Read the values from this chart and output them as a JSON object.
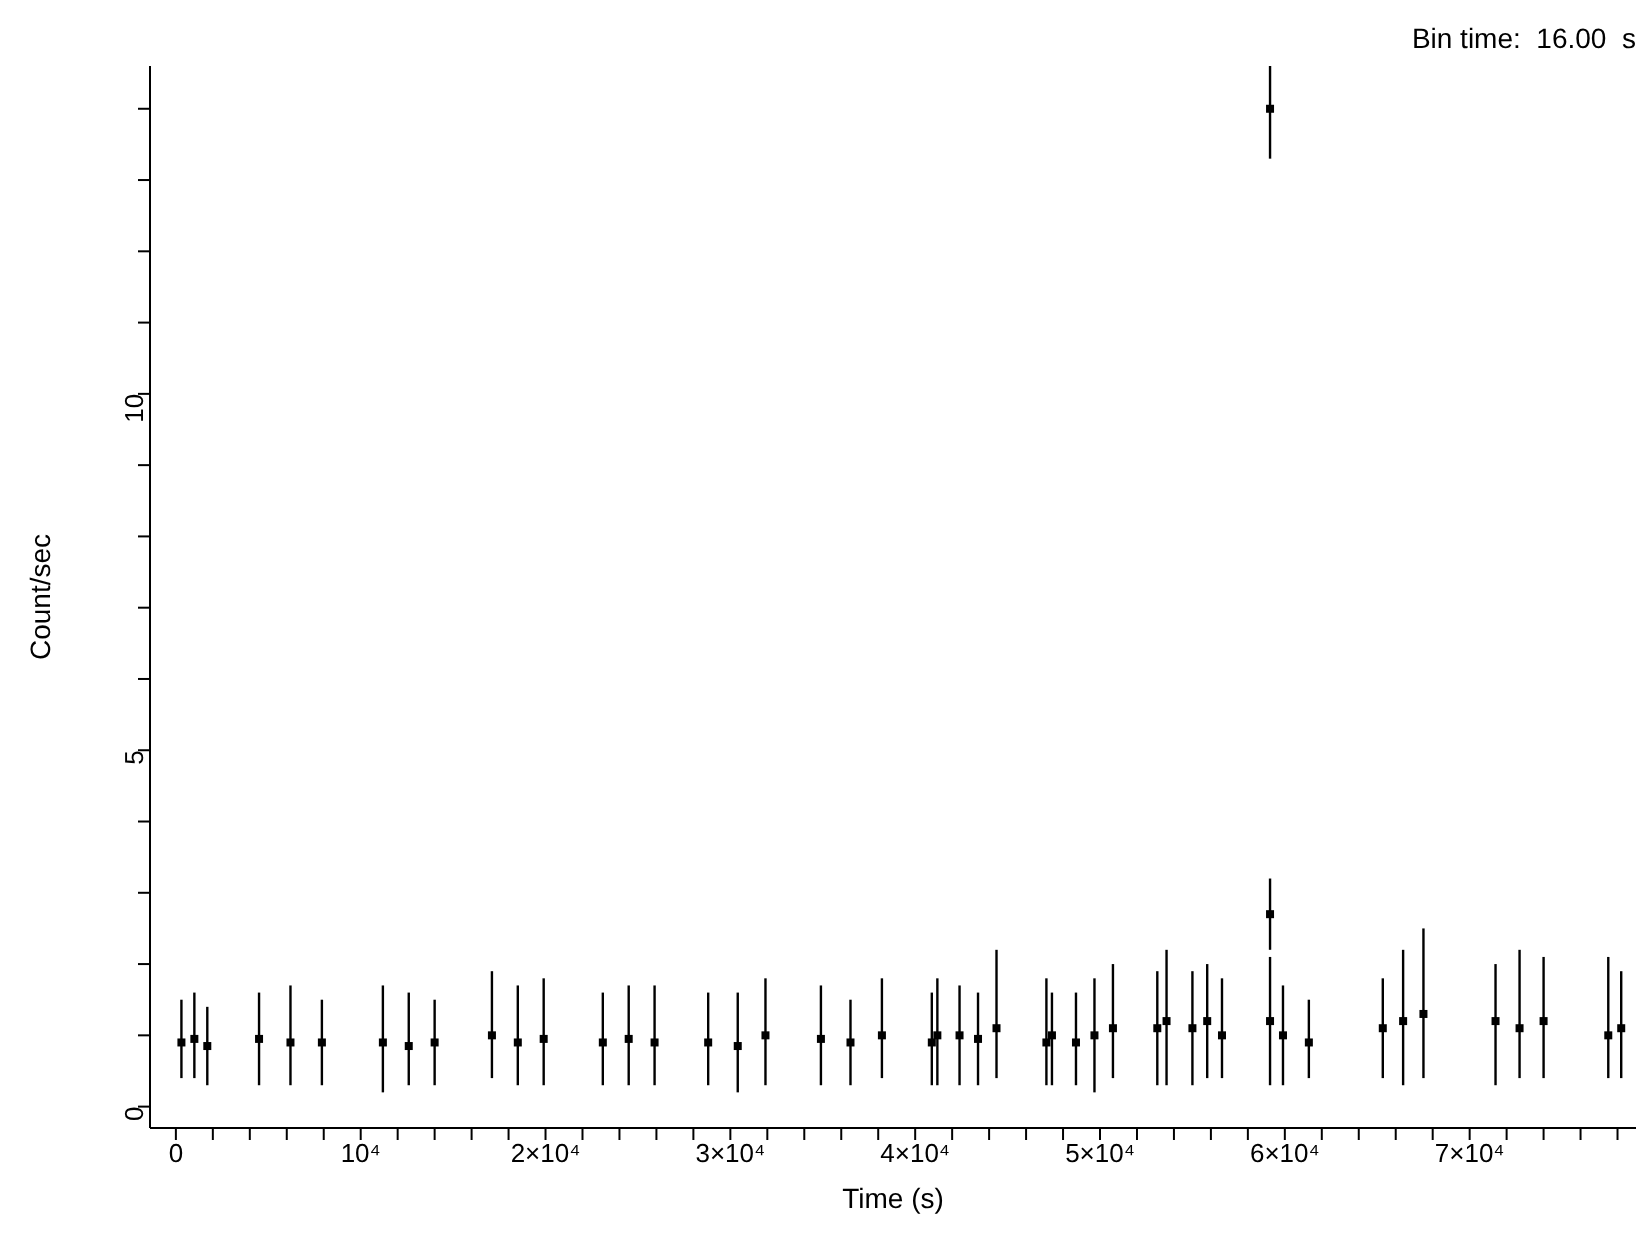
{
  "chart_data": {
    "type": "scatter",
    "title": "Bin time:  16.00  s",
    "xlabel": "Time (s)",
    "ylabel": "Count/sec",
    "marker": "square",
    "grid": false,
    "legend": false,
    "xlim": [
      -1400,
      79000
    ],
    "ylim": [
      -0.3,
      14.6
    ],
    "xticks": [
      {
        "value": 0,
        "label": "0"
      },
      {
        "value": 2000,
        "label": null
      },
      {
        "value": 4000,
        "label": null
      },
      {
        "value": 6000,
        "label": null
      },
      {
        "value": 8000,
        "label": null
      },
      {
        "value": 10000,
        "label": "10⁴"
      },
      {
        "value": 12000,
        "label": null
      },
      {
        "value": 14000,
        "label": null
      },
      {
        "value": 16000,
        "label": null
      },
      {
        "value": 18000,
        "label": null
      },
      {
        "value": 20000,
        "label": "2×10⁴"
      },
      {
        "value": 22000,
        "label": null
      },
      {
        "value": 24000,
        "label": null
      },
      {
        "value": 26000,
        "label": null
      },
      {
        "value": 28000,
        "label": null
      },
      {
        "value": 30000,
        "label": "3×10⁴"
      },
      {
        "value": 32000,
        "label": null
      },
      {
        "value": 34000,
        "label": null
      },
      {
        "value": 36000,
        "label": null
      },
      {
        "value": 38000,
        "label": null
      },
      {
        "value": 40000,
        "label": "4×10⁴"
      },
      {
        "value": 42000,
        "label": null
      },
      {
        "value": 44000,
        "label": null
      },
      {
        "value": 46000,
        "label": null
      },
      {
        "value": 48000,
        "label": null
      },
      {
        "value": 50000,
        "label": "5×10⁴"
      },
      {
        "value": 52000,
        "label": null
      },
      {
        "value": 54000,
        "label": null
      },
      {
        "value": 56000,
        "label": null
      },
      {
        "value": 58000,
        "label": null
      },
      {
        "value": 60000,
        "label": "6×10⁴"
      },
      {
        "value": 62000,
        "label": null
      },
      {
        "value": 64000,
        "label": null
      },
      {
        "value": 66000,
        "label": null
      },
      {
        "value": 68000,
        "label": null
      },
      {
        "value": 70000,
        "label": "7×10⁴"
      },
      {
        "value": 72000,
        "label": null
      },
      {
        "value": 74000,
        "label": null
      },
      {
        "value": 76000,
        "label": null
      },
      {
        "value": 78000,
        "label": null
      }
    ],
    "yticks": [
      0,
      {
        "value": 1,
        "label": null
      },
      {
        "value": 2,
        "label": null
      },
      {
        "value": 3,
        "label": null
      },
      {
        "value": 4,
        "label": null
      },
      5,
      {
        "value": 6,
        "label": null
      },
      {
        "value": 7,
        "label": null
      },
      {
        "value": 8,
        "label": null
      },
      {
        "value": 9,
        "label": null
      },
      10,
      {
        "value": 11,
        "label": null
      },
      {
        "value": 12,
        "label": null
      },
      {
        "value": 13,
        "label": null
      },
      {
        "value": 14,
        "label": null
      }
    ],
    "series": [
      {
        "color": "#000000",
        "x": [
          300,
          1000,
          1700,
          4500,
          6200,
          7900,
          11200,
          12600,
          14000,
          17100,
          18500,
          19900,
          23100,
          24500,
          25900,
          28800,
          30400,
          31900,
          34900,
          36500,
          38200,
          40900,
          41200,
          42400,
          43400,
          44400,
          47100,
          47400,
          48700,
          49700,
          50700,
          53100,
          53600,
          55000,
          55800,
          56600,
          59200,
          59200,
          59900,
          61300,
          65300,
          66400,
          67500,
          71400,
          72700,
          74000,
          77500,
          78200
        ],
        "values": [
          0.9,
          0.95,
          0.85,
          0.95,
          0.9,
          0.9,
          0.9,
          0.85,
          0.9,
          1.0,
          0.9,
          0.95,
          0.9,
          0.95,
          0.9,
          0.9,
          0.85,
          1.0,
          0.95,
          0.9,
          1.0,
          0.9,
          1.0,
          1.0,
          0.95,
          1.1,
          0.9,
          1.0,
          0.9,
          1.0,
          1.1,
          1.1,
          1.2,
          1.1,
          1.2,
          1.0,
          1.2,
          2.7,
          1.0,
          0.9,
          1.1,
          1.2,
          1.3,
          1.2,
          1.1,
          1.2,
          1.0,
          1.1
        ],
        "errors": [
          [
            0.4,
            1.5
          ],
          [
            0.4,
            1.6
          ],
          [
            0.3,
            1.4
          ],
          [
            0.3,
            1.6
          ],
          [
            0.3,
            1.7
          ],
          [
            0.3,
            1.5
          ],
          [
            0.2,
            1.7
          ],
          [
            0.3,
            1.6
          ],
          [
            0.3,
            1.5
          ],
          [
            0.4,
            1.9
          ],
          [
            0.3,
            1.7
          ],
          [
            0.3,
            1.8
          ],
          [
            0.3,
            1.6
          ],
          [
            0.3,
            1.7
          ],
          [
            0.3,
            1.7
          ],
          [
            0.3,
            1.6
          ],
          [
            0.2,
            1.6
          ],
          [
            0.3,
            1.8
          ],
          [
            0.3,
            1.7
          ],
          [
            0.3,
            1.5
          ],
          [
            0.4,
            1.8
          ],
          [
            0.3,
            1.6
          ],
          [
            0.3,
            1.8
          ],
          [
            0.3,
            1.7
          ],
          [
            0.3,
            1.6
          ],
          [
            0.4,
            2.2
          ],
          [
            0.3,
            1.8
          ],
          [
            0.3,
            1.6
          ],
          [
            0.3,
            1.6
          ],
          [
            0.2,
            1.8
          ],
          [
            0.4,
            2.0
          ],
          [
            0.3,
            1.9
          ],
          [
            0.3,
            2.2
          ],
          [
            0.3,
            1.9
          ],
          [
            0.4,
            2.0
          ],
          [
            0.4,
            1.8
          ],
          [
            0.3,
            2.1
          ],
          [
            2.2,
            3.2
          ],
          [
            0.3,
            1.7
          ],
          [
            0.4,
            1.5
          ],
          [
            0.4,
            1.8
          ],
          [
            0.3,
            2.2
          ],
          [
            0.4,
            2.5
          ],
          [
            0.3,
            2.0
          ],
          [
            0.4,
            2.2
          ],
          [
            0.4,
            2.1
          ],
          [
            0.4,
            2.1
          ],
          [
            0.4,
            1.9
          ]
        ]
      },
      {
        "color": "#000000",
        "x": [
          59200
        ],
        "values": [
          14.0
        ],
        "errors": [
          [
            13.3,
            14.6
          ]
        ]
      }
    ]
  }
}
